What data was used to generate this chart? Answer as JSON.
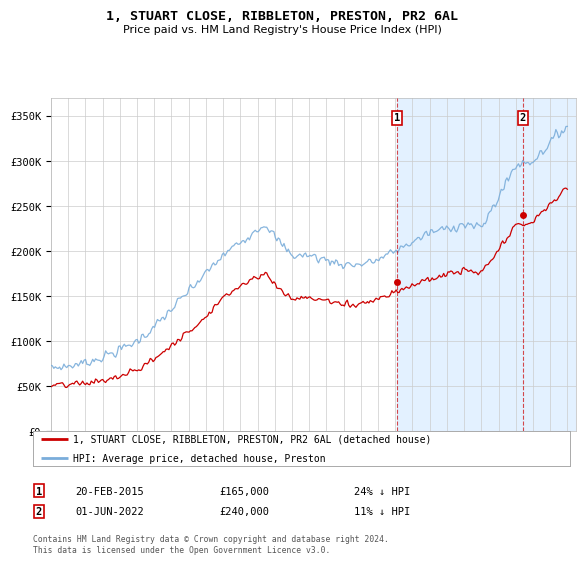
{
  "title": "1, STUART CLOSE, RIBBLETON, PRESTON, PR2 6AL",
  "subtitle": "Price paid vs. HM Land Registry's House Price Index (HPI)",
  "footnote": "Contains HM Land Registry data © Crown copyright and database right 2024.\nThis data is licensed under the Open Government Licence v3.0.",
  "legend_line1": "1, STUART CLOSE, RIBBLETON, PRESTON, PR2 6AL (detached house)",
  "legend_line2": "HPI: Average price, detached house, Preston",
  "annotation1_label": "1",
  "annotation1_date": "20-FEB-2015",
  "annotation1_value": "£165,000",
  "annotation1_hpi": "24% ↓ HPI",
  "annotation2_label": "2",
  "annotation2_date": "01-JUN-2022",
  "annotation2_value": "£240,000",
  "annotation2_hpi": "11% ↓ HPI",
  "sale_color": "#cc0000",
  "hpi_color": "#7aadda",
  "shade_color": "#ddeeff",
  "plot_bg": "#ffffff",
  "grid_color": "#cccccc",
  "ylim": [
    0,
    370000
  ],
  "yticks": [
    0,
    50000,
    100000,
    150000,
    200000,
    250000,
    300000,
    350000
  ],
  "ytick_labels": [
    "£0",
    "£50K",
    "£100K",
    "£150K",
    "£200K",
    "£250K",
    "£300K",
    "£350K"
  ],
  "sale1_x": 2015.13,
  "sale1_y": 165000,
  "sale2_x": 2022.42,
  "sale2_y": 240000,
  "xlim_start": 1995,
  "xlim_end": 2025.5,
  "hpi_anchors_x": [
    1995,
    1996,
    1997,
    1998,
    1999,
    2000,
    2001,
    2002,
    2003,
    2004,
    2005,
    2006,
    2007,
    2007.5,
    2008,
    2009,
    2010,
    2011,
    2012,
    2013,
    2014,
    2015,
    2016,
    2017,
    2018,
    2019,
    2020,
    2021,
    2022,
    2023,
    2024,
    2025
  ],
  "hpi_anchors_y": [
    70000,
    72000,
    76000,
    82000,
    90000,
    100000,
    115000,
    135000,
    155000,
    175000,
    195000,
    210000,
    225000,
    230000,
    215000,
    195000,
    195000,
    190000,
    185000,
    185000,
    190000,
    200000,
    210000,
    220000,
    225000,
    230000,
    225000,
    260000,
    295000,
    300000,
    320000,
    340000
  ],
  "sale_anchors_x": [
    1995,
    1996,
    1997,
    1998,
    1999,
    2000,
    2001,
    2002,
    2003,
    2004,
    2005,
    2006,
    2007,
    2007.5,
    2008,
    2009,
    2010,
    2011,
    2012,
    2013,
    2014,
    2015,
    2016,
    2017,
    2018,
    2019,
    2020,
    2021,
    2022,
    2023,
    2024,
    2025
  ],
  "sale_anchors_y": [
    50000,
    51000,
    53000,
    56000,
    60000,
    68000,
    80000,
    95000,
    110000,
    128000,
    148000,
    162000,
    172000,
    175000,
    162000,
    147000,
    148000,
    145000,
    140000,
    142000,
    147000,
    155000,
    162000,
    168000,
    174000,
    178000,
    175000,
    200000,
    228000,
    232000,
    252000,
    270000
  ]
}
